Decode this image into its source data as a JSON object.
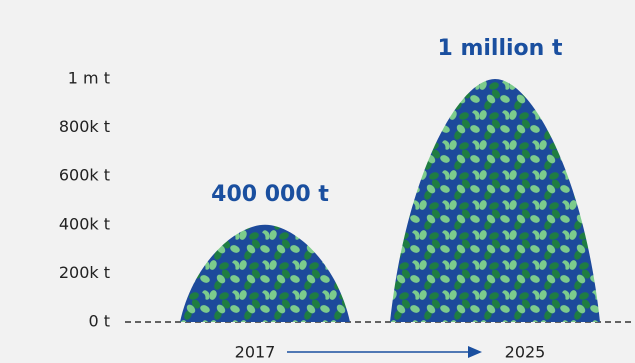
{
  "chart_data": {
    "type": "pictogram",
    "categories": [
      "2017",
      "2025"
    ],
    "values": [
      400000,
      1000000
    ],
    "value_labels": [
      "400 000 t",
      "1 million t"
    ],
    "colors": [
      "#1d4a9b",
      "#1f7d42",
      "#7ccb8c"
    ],
    "ylim": [
      0,
      1000000
    ],
    "yticks": [
      {
        "value": 0,
        "label": "0 t"
      },
      {
        "value": 200000,
        "label": "200k t"
      },
      {
        "value": 400000,
        "label": "400k t"
      },
      {
        "value": 600000,
        "label": "600k t"
      },
      {
        "value": 800000,
        "label": "800k t"
      },
      {
        "value": 1000000,
        "label": "1 m t"
      }
    ]
  }
}
